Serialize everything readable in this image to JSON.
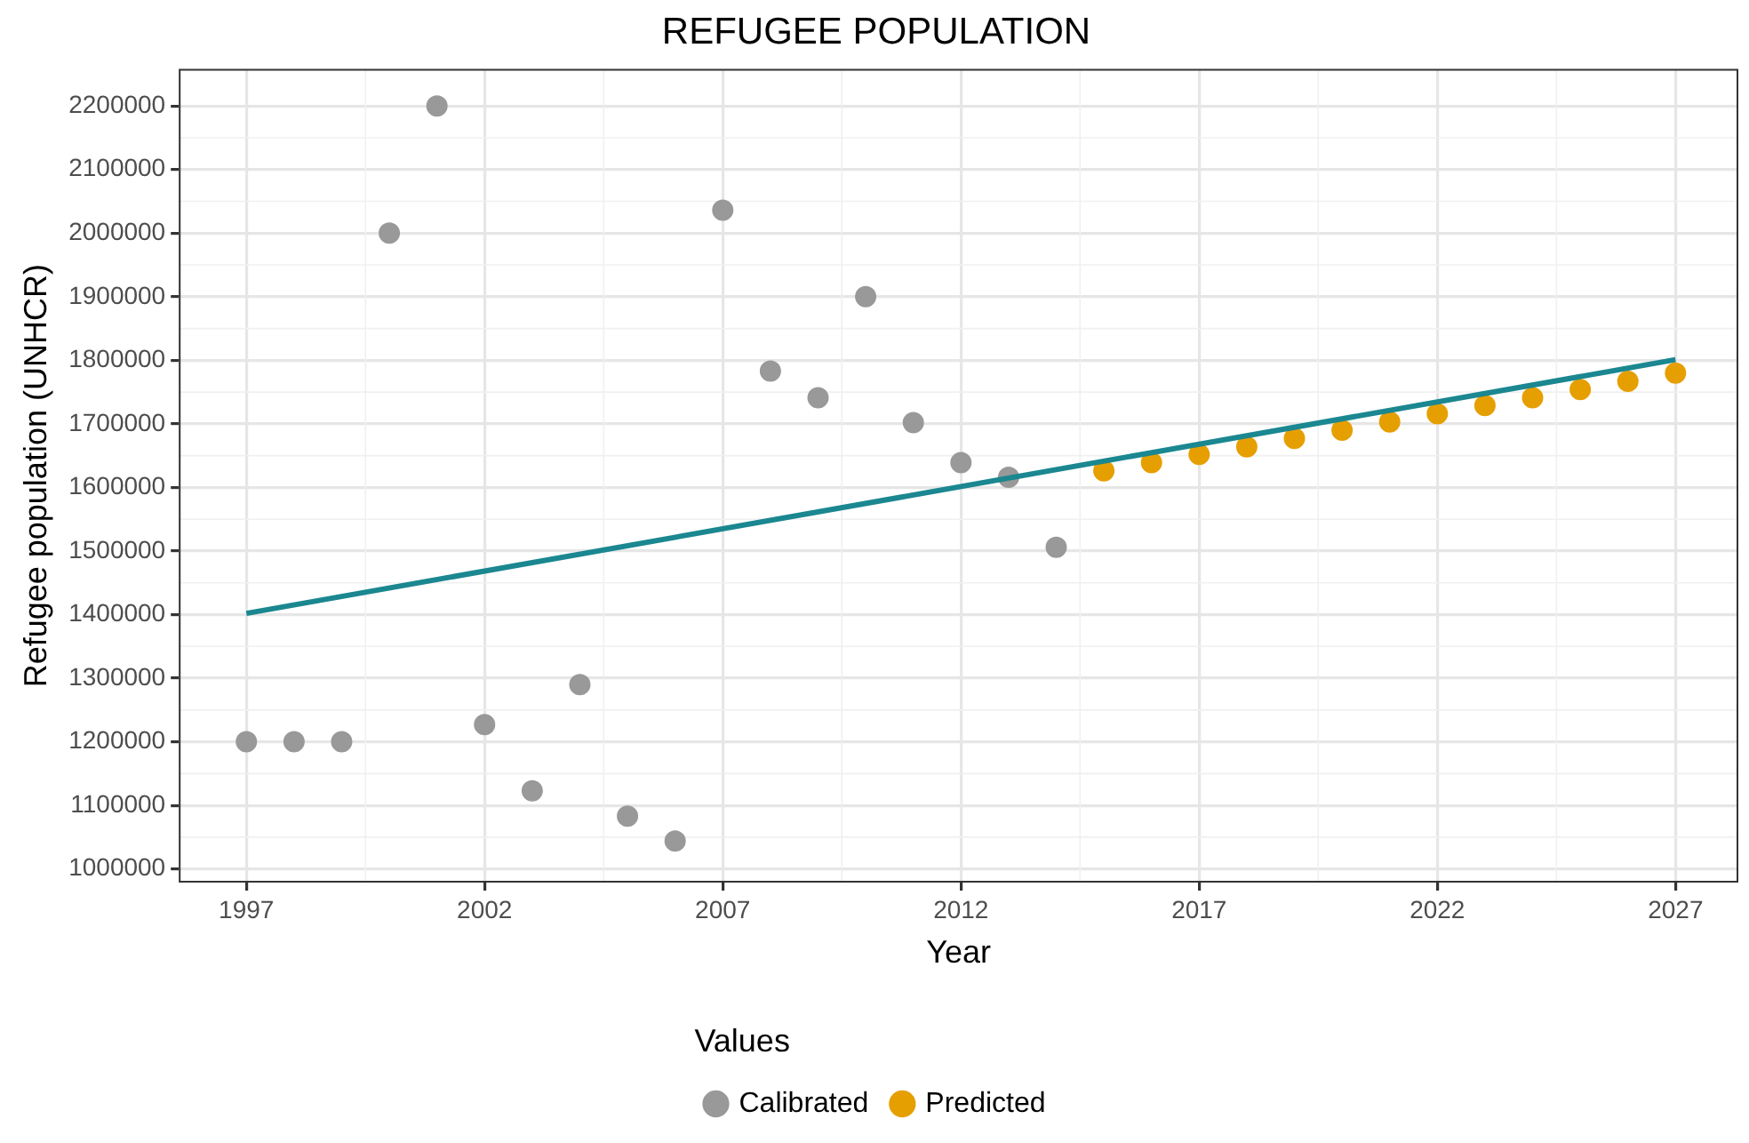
{
  "chart_data": {
    "type": "scatter",
    "title": "REFUGEE POPULATION",
    "xlabel": "Year",
    "ylabel": "Refugee population (UNHCR)",
    "legend_title": "Values",
    "legend": "bottom",
    "grid": true,
    "xlim": [
      1995.6,
      2028.3
    ],
    "xticks": [
      1997,
      2002,
      2007,
      2012,
      2017,
      2022,
      2027
    ],
    "ylim": [
      980000,
      2257000
    ],
    "yticks": [
      1000000,
      1100000,
      1200000,
      1300000,
      1400000,
      1500000,
      1600000,
      1700000,
      1800000,
      1900000,
      2000000,
      2100000,
      2200000
    ],
    "series": [
      {
        "type": "line",
        "color": "#1b8790",
        "x": [
          1997,
          2027
        ],
        "values": [
          1402000,
          1801000
        ]
      },
      {
        "name": "Calibrated",
        "color": "#999999",
        "marker": "circle",
        "x": [
          1997,
          1998,
          1999,
          2000,
          2001,
          2002,
          2003,
          2004,
          2005,
          2006,
          2007,
          2008,
          2009,
          2010,
          2011,
          2012,
          2013,
          2014
        ],
        "values": [
          1200000,
          1200000,
          1200000,
          2000000,
          2200000,
          1227000,
          1123000,
          1290000,
          1083000,
          1044000,
          2036000,
          1783000,
          1741000,
          1900000,
          1702000,
          1639000,
          1616000,
          1506000
        ]
      },
      {
        "name": "Predicted",
        "color": "#e69f00",
        "marker": "circle",
        "x": [
          2015,
          2016,
          2017,
          2018,
          2019,
          2020,
          2021,
          2022,
          2023,
          2024,
          2025,
          2026,
          2027
        ],
        "values": [
          1626000,
          1639000,
          1652000,
          1664000,
          1677000,
          1690000,
          1703000,
          1716000,
          1729000,
          1741000,
          1754000,
          1767000,
          1780000
        ]
      }
    ]
  }
}
